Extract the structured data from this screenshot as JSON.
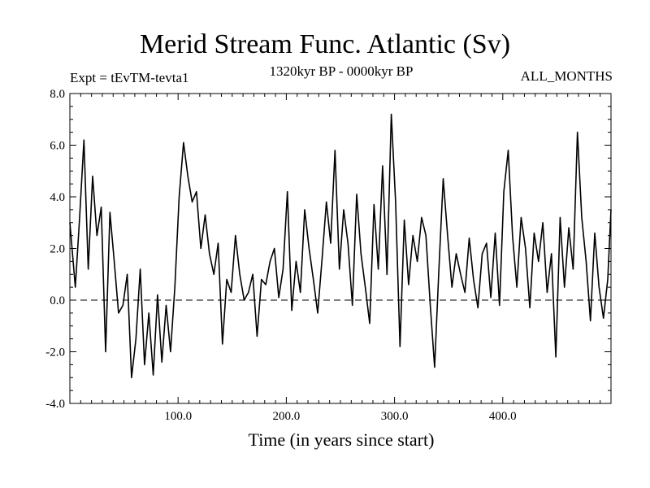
{
  "chart_data": {
    "type": "line",
    "title": "Merid Stream Func. Atlantic (Sv)",
    "subtitle_left": "Expt = tEvTM-tevta1",
    "subtitle_center": "1320kyr BP - 0000kyr BP",
    "subtitle_right": "ALL_MONTHS",
    "xlabel": "Time (in years since start)",
    "ylabel": "",
    "xlim": [
      0,
      500
    ],
    "ylim": [
      -4.0,
      8.0
    ],
    "x_ticks": [
      100,
      200,
      300,
      400
    ],
    "x_tick_labels": [
      "100.0",
      "200.0",
      "300.0",
      "400.0"
    ],
    "y_ticks": [
      -4,
      -2,
      0,
      2,
      4,
      6,
      8
    ],
    "y_tick_labels": [
      "-4.0",
      "-2.0",
      "0.0",
      "2.0",
      "4.0",
      "6.0",
      "8.0"
    ],
    "reference_line": 0.0,
    "series": [
      {
        "name": "Merid Stream Func. Atlantic",
        "x": [
          0,
          5,
          9,
          13,
          17,
          21,
          25,
          29,
          33,
          37,
          41,
          45,
          49,
          53,
          57,
          61,
          65,
          69,
          73,
          77,
          81,
          85,
          89,
          93,
          97,
          101,
          105,
          109,
          113,
          117,
          121,
          125,
          129,
          133,
          137,
          141,
          145,
          149,
          153,
          157,
          161,
          165,
          169,
          173,
          177,
          181,
          185,
          189,
          193,
          197,
          201,
          205,
          209,
          213,
          217,
          221,
          225,
          229,
          233,
          237,
          241,
          245,
          249,
          253,
          257,
          261,
          265,
          269,
          273,
          277,
          281,
          285,
          289,
          293,
          297,
          301,
          305,
          309,
          313,
          317,
          321,
          325,
          329,
          333,
          337,
          341,
          345,
          349,
          353,
          357,
          361,
          365,
          369,
          373,
          377,
          381,
          385,
          389,
          393,
          397,
          401,
          405,
          409,
          413,
          417,
          421,
          425,
          429,
          433,
          437,
          441,
          445,
          449,
          453,
          457,
          461,
          465,
          469,
          473,
          477,
          481,
          485,
          489,
          493,
          497,
          500
        ],
        "values": [
          3.0,
          0.5,
          3.2,
          6.2,
          1.2,
          4.8,
          2.5,
          3.6,
          -2.0,
          3.4,
          1.5,
          -0.5,
          -0.2,
          1.0,
          -3.0,
          -1.5,
          1.2,
          -2.5,
          -0.5,
          -2.9,
          0.2,
          -2.4,
          -0.2,
          -2.0,
          0.5,
          4.0,
          6.1,
          4.8,
          3.8,
          4.2,
          2.0,
          3.3,
          1.8,
          1.0,
          2.2,
          -1.7,
          0.8,
          0.3,
          2.5,
          1.0,
          0.0,
          0.3,
          1.0,
          -1.4,
          0.8,
          0.6,
          1.5,
          2.0,
          0.1,
          1.2,
          4.2,
          -0.4,
          1.5,
          0.3,
          3.5,
          2.0,
          0.8,
          -0.5,
          1.6,
          3.8,
          2.2,
          5.8,
          1.2,
          3.5,
          2.2,
          -0.2,
          4.1,
          1.8,
          0.5,
          -0.9,
          3.7,
          1.2,
          5.2,
          1.0,
          7.2,
          3.8,
          -1.8,
          3.1,
          0.6,
          2.5,
          1.5,
          3.2,
          2.5,
          -0.2,
          -2.6,
          1.2,
          4.7,
          2.5,
          0.5,
          1.8,
          1.0,
          0.3,
          2.4,
          0.8,
          -0.3,
          1.8,
          2.2,
          0.1,
          2.6,
          -0.2,
          4.2,
          5.8,
          2.5,
          0.5,
          3.2,
          2.0,
          -0.3,
          2.6,
          1.5,
          3.0,
          0.3,
          1.8,
          -2.2,
          3.2,
          0.5,
          2.8,
          1.2,
          6.5,
          3.2,
          1.5,
          -0.8,
          2.6,
          0.5,
          -0.7,
          0.8,
          3.5
        ]
      }
    ]
  }
}
